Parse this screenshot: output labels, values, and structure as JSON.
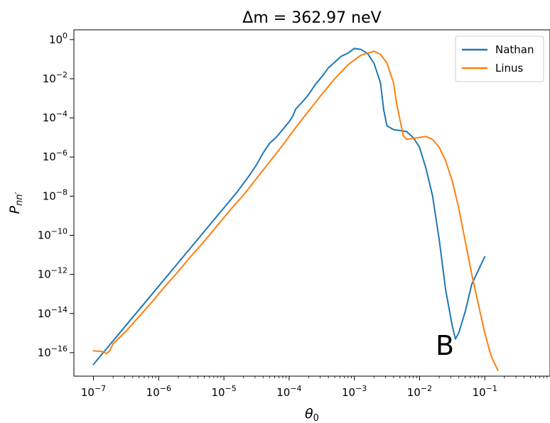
{
  "chart_data": {
    "type": "line",
    "title": "Δm = 362.97 neV",
    "xlabel": "θ0",
    "ylabel": "Pnn′",
    "xscale": "log",
    "yscale": "log",
    "xlim_exp": [
      -7.3,
      0
    ],
    "ylim_exp": [
      -17.2,
      0.5
    ],
    "xticks": [
      {
        "exp": -7,
        "label": "10^-7"
      },
      {
        "exp": -6,
        "label": "10^-6"
      },
      {
        "exp": -5,
        "label": "10^-5"
      },
      {
        "exp": -4,
        "label": "10^-4"
      },
      {
        "exp": -3,
        "label": "10^-3"
      },
      {
        "exp": -2,
        "label": "10^-2"
      },
      {
        "exp": -1,
        "label": "10^-1"
      }
    ],
    "yticks": [
      {
        "exp": 0,
        "label": "10^0"
      },
      {
        "exp": -2,
        "label": "10^-2"
      },
      {
        "exp": -4,
        "label": "10^-4"
      },
      {
        "exp": -6,
        "label": "10^-6"
      },
      {
        "exp": -8,
        "label": "10^-8"
      },
      {
        "exp": -10,
        "label": "10^-10"
      },
      {
        "exp": -12,
        "label": "10^-12"
      },
      {
        "exp": -14,
        "label": "10^-14"
      },
      {
        "exp": -16,
        "label": "10^-16"
      }
    ],
    "grid": false,
    "legend_position": "top-right",
    "annotation": "B",
    "series": [
      {
        "name": "Nathan",
        "color": "#1f77b4",
        "points_log10": [
          [
            -7.0,
            -16.6
          ],
          [
            -6.9,
            -16.2
          ],
          [
            -6.8,
            -15.8
          ],
          [
            -6.6,
            -15.0
          ],
          [
            -6.4,
            -14.2
          ],
          [
            -6.2,
            -13.4
          ],
          [
            -6.0,
            -12.6
          ],
          [
            -5.8,
            -11.8
          ],
          [
            -5.6,
            -11.0
          ],
          [
            -5.4,
            -10.2
          ],
          [
            -5.2,
            -9.4
          ],
          [
            -5.0,
            -8.6
          ],
          [
            -4.8,
            -7.8
          ],
          [
            -4.6,
            -6.9
          ],
          [
            -4.5,
            -6.4
          ],
          [
            -4.4,
            -5.8
          ],
          [
            -4.3,
            -5.3
          ],
          [
            -4.2,
            -5.0
          ],
          [
            -4.1,
            -4.6
          ],
          [
            -4.0,
            -4.2
          ],
          [
            -3.95,
            -3.95
          ],
          [
            -3.9,
            -3.55
          ],
          [
            -3.8,
            -3.2
          ],
          [
            -3.7,
            -2.8
          ],
          [
            -3.6,
            -2.3
          ],
          [
            -3.5,
            -1.9
          ],
          [
            -3.4,
            -1.45
          ],
          [
            -3.3,
            -1.15
          ],
          [
            -3.2,
            -0.85
          ],
          [
            -3.1,
            -0.7
          ],
          [
            -3.0,
            -0.45
          ],
          [
            -2.9,
            -0.5
          ],
          [
            -2.8,
            -0.7
          ],
          [
            -2.7,
            -1.2
          ],
          [
            -2.6,
            -2.2
          ],
          [
            -2.55,
            -3.6
          ],
          [
            -2.5,
            -4.4
          ],
          [
            -2.4,
            -4.6
          ],
          [
            -2.3,
            -4.65
          ],
          [
            -2.2,
            -4.7
          ],
          [
            -2.1,
            -5.0
          ],
          [
            -2.0,
            -5.5
          ],
          [
            -1.9,
            -6.6
          ],
          [
            -1.8,
            -8.0
          ],
          [
            -1.7,
            -10.2
          ],
          [
            -1.6,
            -12.8
          ],
          [
            -1.5,
            -14.6
          ],
          [
            -1.45,
            -15.3
          ],
          [
            -1.4,
            -15.0
          ],
          [
            -1.3,
            -13.9
          ],
          [
            -1.2,
            -12.5
          ],
          [
            -1.1,
            -11.8
          ],
          [
            -1.0,
            -11.1
          ]
        ]
      },
      {
        "name": "Linus",
        "color": "#ff7f0e",
        "points_log10": [
          [
            -7.0,
            -15.9
          ],
          [
            -6.85,
            -15.95
          ],
          [
            -6.8,
            -16.05
          ],
          [
            -6.75,
            -15.9
          ],
          [
            -6.7,
            -15.55
          ],
          [
            -6.5,
            -14.9
          ],
          [
            -6.3,
            -14.15
          ],
          [
            -6.1,
            -13.4
          ],
          [
            -5.9,
            -12.6
          ],
          [
            -5.7,
            -11.85
          ],
          [
            -5.5,
            -11.05
          ],
          [
            -5.3,
            -10.3
          ],
          [
            -5.1,
            -9.5
          ],
          [
            -4.9,
            -8.7
          ],
          [
            -4.7,
            -7.95
          ],
          [
            -4.5,
            -7.1
          ],
          [
            -4.3,
            -6.25
          ],
          [
            -4.1,
            -5.4
          ],
          [
            -3.9,
            -4.5
          ],
          [
            -3.7,
            -3.65
          ],
          [
            -3.5,
            -2.8
          ],
          [
            -3.3,
            -2.0
          ],
          [
            -3.1,
            -1.3
          ],
          [
            -2.9,
            -0.8
          ],
          [
            -2.7,
            -0.6
          ],
          [
            -2.6,
            -0.75
          ],
          [
            -2.5,
            -1.2
          ],
          [
            -2.4,
            -2.2
          ],
          [
            -2.35,
            -3.3
          ],
          [
            -2.3,
            -4.1
          ],
          [
            -2.25,
            -4.9
          ],
          [
            -2.2,
            -5.1
          ],
          [
            -2.1,
            -5.05
          ],
          [
            -2.0,
            -5.0
          ],
          [
            -1.9,
            -4.95
          ],
          [
            -1.8,
            -5.1
          ],
          [
            -1.7,
            -5.5
          ],
          [
            -1.6,
            -6.2
          ],
          [
            -1.5,
            -7.2
          ],
          [
            -1.4,
            -8.6
          ],
          [
            -1.3,
            -10.3
          ],
          [
            -1.2,
            -12.0
          ],
          [
            -1.1,
            -13.5
          ],
          [
            -1.0,
            -15.0
          ],
          [
            -0.9,
            -16.2
          ],
          [
            -0.8,
            -16.9
          ]
        ]
      }
    ]
  },
  "ylabel_parts": {
    "base": "P",
    "sub": "nn′"
  },
  "xlabel_parts": {
    "base": "θ",
    "sub": "0"
  }
}
